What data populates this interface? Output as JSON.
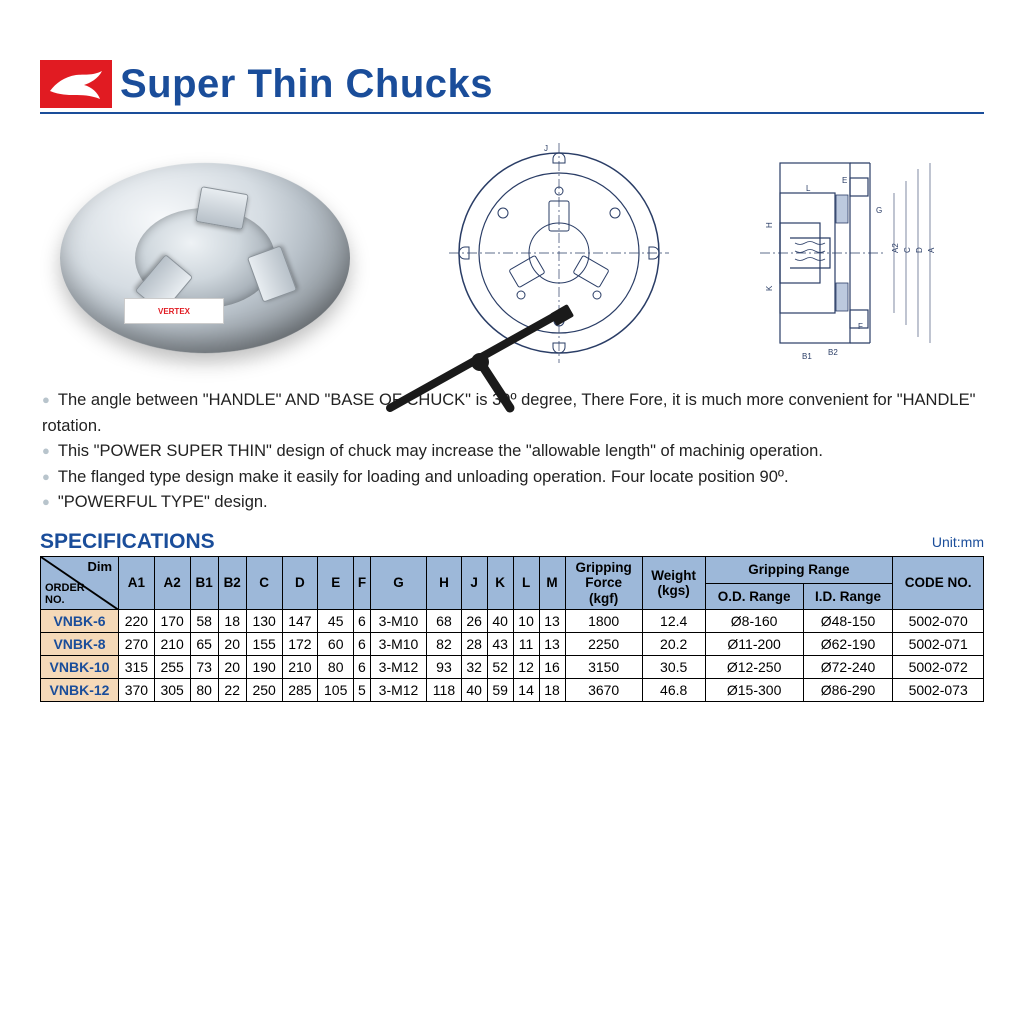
{
  "title": "Super Thin Chucks",
  "brand_label": "VERTEX",
  "bullets": [
    "The angle between \"HANDLE\" AND \"BASE OF CHUCK\" is 30º degree, There Fore, it is much more convenient for \"HANDLE\" rotation.",
    "This \"POWER SUPER THIN\" design of chuck may increase the \"allowable length\" of machinig operation.",
    "The flanged type design make it easily for loading and unloading operation. Four locate position 90º.",
    "\"POWERFUL TYPE\" design."
  ],
  "spec_heading": "SPECIFICATIONS",
  "unit_label": "Unit:mm",
  "table": {
    "corner_dim": "Dim",
    "corner_order": "ORDER\nNO.",
    "group_gripping": "Gripping Range",
    "columns": [
      "A1",
      "A2",
      "B1",
      "B2",
      "C",
      "D",
      "E",
      "F",
      "G",
      "H",
      "J",
      "K",
      "L",
      "M",
      "Gripping\nForce\n(kgf)",
      "Weight\n(kgs)",
      "O.D. Range",
      "I.D. Range",
      "CODE NO."
    ],
    "rows": [
      {
        "order": "VNBK-6",
        "cells": [
          "220",
          "170",
          "58",
          "18",
          "130",
          "147",
          "45",
          "6",
          "3-M10",
          "68",
          "26",
          "40",
          "10",
          "13",
          "1800",
          "12.4",
          "Ø8-160",
          "Ø48-150",
          "5002-070"
        ]
      },
      {
        "order": "VNBK-8",
        "cells": [
          "270",
          "210",
          "65",
          "20",
          "155",
          "172",
          "60",
          "6",
          "3-M10",
          "82",
          "28",
          "43",
          "11",
          "13",
          "2250",
          "20.2",
          "Ø11-200",
          "Ø62-190",
          "5002-071"
        ]
      },
      {
        "order": "VNBK-10",
        "cells": [
          "315",
          "255",
          "73",
          "20",
          "190",
          "210",
          "80",
          "6",
          "3-M12",
          "93",
          "32",
          "52",
          "12",
          "16",
          "3150",
          "30.5",
          "Ø12-250",
          "Ø72-240",
          "5002-072"
        ]
      },
      {
        "order": "VNBK-12",
        "cells": [
          "370",
          "305",
          "80",
          "22",
          "250",
          "285",
          "105",
          "5",
          "3-M12",
          "118",
          "40",
          "59",
          "14",
          "18",
          "3670",
          "46.8",
          "Ø15-300",
          "Ø86-290",
          "5002-073"
        ]
      }
    ]
  },
  "colors": {
    "brand_red": "#e11b22",
    "heading_blue": "#1a4d9a",
    "table_header_bg": "#9db8d9",
    "order_cell_bg": "#f5d9b8",
    "bullet_grey": "#b8c4cc"
  }
}
